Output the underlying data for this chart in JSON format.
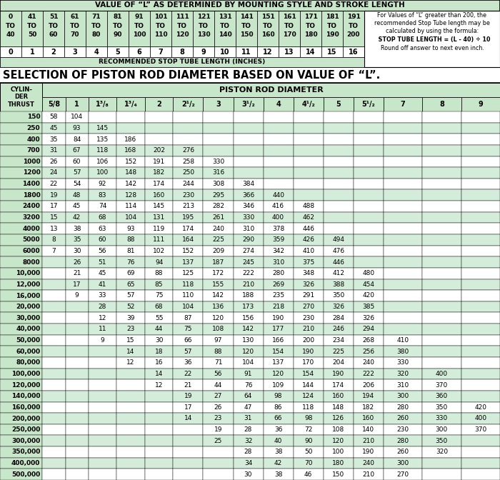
{
  "title1": "VALUE OF “L” AS DETERMINED BY MOUNTING STYLE AND STROKE LENGTH",
  "title2": "SELECTION OF PISTON ROD DIAMETER BASED ON VALUE OF “L”.",
  "ranges": [
    "0\nTO\n40",
    "41\nTO\n50",
    "51\nTO\n60",
    "61\nTO\n70",
    "71\nTO\n80",
    "81\nTO\n90",
    "91\nTO\n100",
    "101\nTO\n110",
    "111\nTO\n120",
    "121\nTO\n130",
    "131\nTO\n140",
    "141\nTO\n150",
    "151\nTO\n160",
    "161\nTO\n170",
    "171\nTO\n180",
    "181\nTO\n190",
    "191\nTO\n200"
  ],
  "nums": [
    "0",
    "1",
    "2",
    "3",
    "4",
    "5",
    "6",
    "7",
    "8",
    "9",
    "10",
    "11",
    "12",
    "13",
    "14",
    "15",
    "16"
  ],
  "top_note_lines": [
    "For Values of “L” greater than 200, the",
    "recommended Stop Tube length may be",
    "calculated by using the formula:",
    "  STOP TUBE LENGTH = (L - 40) ÷ 10",
    "Round off answer to next even inch."
  ],
  "rod_labels": [
    "5/8",
    "1",
    "1³/₈",
    "1³/₄",
    "2",
    "2¹/₂",
    "3",
    "3¹/₂",
    "4",
    "4¹/₂",
    "5",
    "5¹/₂",
    "7",
    "8",
    "9"
  ],
  "rows": [
    [
      "150",
      "58",
      "104",
      "",
      "",
      "",
      "",
      "",
      "",
      "",
      "",
      "",
      "",
      "",
      "",
      ""
    ],
    [
      "250",
      "45",
      "93",
      "145",
      "",
      "",
      "",
      "",
      "",
      "",
      "",
      "",
      "",
      "",
      "",
      ""
    ],
    [
      "400",
      "35",
      "84",
      "135",
      "186",
      "",
      "",
      "",
      "",
      "",
      "",
      "",
      "",
      "",
      "",
      ""
    ],
    [
      "700",
      "31",
      "67",
      "118",
      "168",
      "202",
      "276",
      "",
      "",
      "",
      "",
      "",
      "",
      "",
      "",
      ""
    ],
    [
      "1000",
      "26",
      "60",
      "106",
      "152",
      "191",
      "258",
      "330",
      "",
      "",
      "",
      "",
      "",
      "",
      "",
      ""
    ],
    [
      "1200",
      "24",
      "57",
      "100",
      "148",
      "182",
      "250",
      "316",
      "",
      "",
      "",
      "",
      "",
      "",
      "",
      ""
    ],
    [
      "1400",
      "22",
      "54",
      "92",
      "142",
      "174",
      "244",
      "308",
      "384",
      "",
      "",
      "",
      "",
      "",
      "",
      ""
    ],
    [
      "1800",
      "19",
      "48",
      "83",
      "128",
      "160",
      "230",
      "295",
      "366",
      "440",
      "",
      "",
      "",
      "",
      "",
      ""
    ],
    [
      "2400",
      "17",
      "45",
      "74",
      "114",
      "145",
      "213",
      "282",
      "346",
      "416",
      "488",
      "",
      "",
      "",
      "",
      ""
    ],
    [
      "3200",
      "15",
      "42",
      "68",
      "104",
      "131",
      "195",
      "261",
      "330",
      "400",
      "462",
      "",
      "",
      "",
      "",
      ""
    ],
    [
      "4000",
      "13",
      "38",
      "63",
      "93",
      "119",
      "174",
      "240",
      "310",
      "378",
      "446",
      "",
      "",
      "",
      "",
      ""
    ],
    [
      "5000",
      "8",
      "35",
      "60",
      "88",
      "111",
      "164",
      "225",
      "290",
      "359",
      "426",
      "494",
      "",
      "",
      "",
      ""
    ],
    [
      "6000",
      "7",
      "30",
      "56",
      "81",
      "102",
      "152",
      "209",
      "274",
      "342",
      "410",
      "476",
      "",
      "",
      "",
      ""
    ],
    [
      "8000",
      "",
      "26",
      "51",
      "76",
      "94",
      "137",
      "187",
      "245",
      "310",
      "375",
      "446",
      "",
      "",
      "",
      ""
    ],
    [
      "10,000",
      "",
      "21",
      "45",
      "69",
      "88",
      "125",
      "172",
      "222",
      "280",
      "348",
      "412",
      "480",
      "",
      "",
      ""
    ],
    [
      "12,000",
      "",
      "17",
      "41",
      "65",
      "85",
      "118",
      "155",
      "210",
      "269",
      "326",
      "388",
      "454",
      "",
      "",
      ""
    ],
    [
      "16,000",
      "",
      "9",
      "33",
      "57",
      "75",
      "110",
      "142",
      "188",
      "235",
      "291",
      "350",
      "420",
      "",
      "",
      ""
    ],
    [
      "20,000",
      "",
      "",
      "28",
      "52",
      "68",
      "104",
      "136",
      "173",
      "218",
      "270",
      "326",
      "385",
      "",
      "",
      ""
    ],
    [
      "30,000",
      "",
      "",
      "12",
      "39",
      "55",
      "87",
      "120",
      "156",
      "190",
      "230",
      "284",
      "326",
      "",
      "",
      ""
    ],
    [
      "40,000",
      "",
      "",
      "11",
      "23",
      "44",
      "75",
      "108",
      "142",
      "177",
      "210",
      "246",
      "294",
      "",
      "",
      ""
    ],
    [
      "50,000",
      "",
      "",
      "9",
      "15",
      "30",
      "66",
      "97",
      "130",
      "166",
      "200",
      "234",
      "268",
      "410",
      "",
      ""
    ],
    [
      "60,000",
      "",
      "",
      "",
      "14",
      "18",
      "57",
      "88",
      "120",
      "154",
      "190",
      "225",
      "256",
      "380",
      "",
      ""
    ],
    [
      "80,000",
      "",
      "",
      "",
      "12",
      "16",
      "36",
      "71",
      "104",
      "137",
      "170",
      "204",
      "240",
      "330",
      "",
      ""
    ],
    [
      "100,000",
      "",
      "",
      "",
      "",
      "14",
      "22",
      "56",
      "91",
      "120",
      "154",
      "190",
      "222",
      "320",
      "400",
      ""
    ],
    [
      "120,000",
      "",
      "",
      "",
      "",
      "12",
      "21",
      "44",
      "76",
      "109",
      "144",
      "174",
      "206",
      "310",
      "370",
      ""
    ],
    [
      "140,000",
      "",
      "",
      "",
      "",
      "",
      "19",
      "27",
      "64",
      "98",
      "124",
      "160",
      "194",
      "300",
      "360",
      ""
    ],
    [
      "160,000",
      "",
      "",
      "",
      "",
      "",
      "17",
      "26",
      "47",
      "86",
      "118",
      "148",
      "182",
      "280",
      "350",
      "420"
    ],
    [
      "200,000",
      "",
      "",
      "",
      "",
      "",
      "14",
      "23",
      "31",
      "66",
      "98",
      "126",
      "160",
      "260",
      "330",
      "400"
    ],
    [
      "250,000",
      "",
      "",
      "",
      "",
      "",
      "",
      "19",
      "28",
      "36",
      "72",
      "108",
      "140",
      "230",
      "300",
      "370"
    ],
    [
      "300,000",
      "",
      "",
      "",
      "",
      "",
      "",
      "25",
      "32",
      "40",
      "90",
      "120",
      "210",
      "280",
      "350",
      ""
    ],
    [
      "350,000",
      "",
      "",
      "",
      "",
      "",
      "",
      "",
      "28",
      "38",
      "50",
      "100",
      "190",
      "260",
      "320",
      ""
    ],
    [
      "400,000",
      "",
      "",
      "",
      "",
      "",
      "",
      "",
      "34",
      "42",
      "70",
      "180",
      "240",
      "300",
      "",
      ""
    ],
    [
      "500,000",
      "",
      "",
      "",
      "",
      "",
      "",
      "",
      "30",
      "38",
      "46",
      "150",
      "210",
      "270",
      "",
      ""
    ]
  ],
  "green_light": "#c8e6c9",
  "green_alt": "#d4edda",
  "white": "#ffffff",
  "black": "#000000"
}
